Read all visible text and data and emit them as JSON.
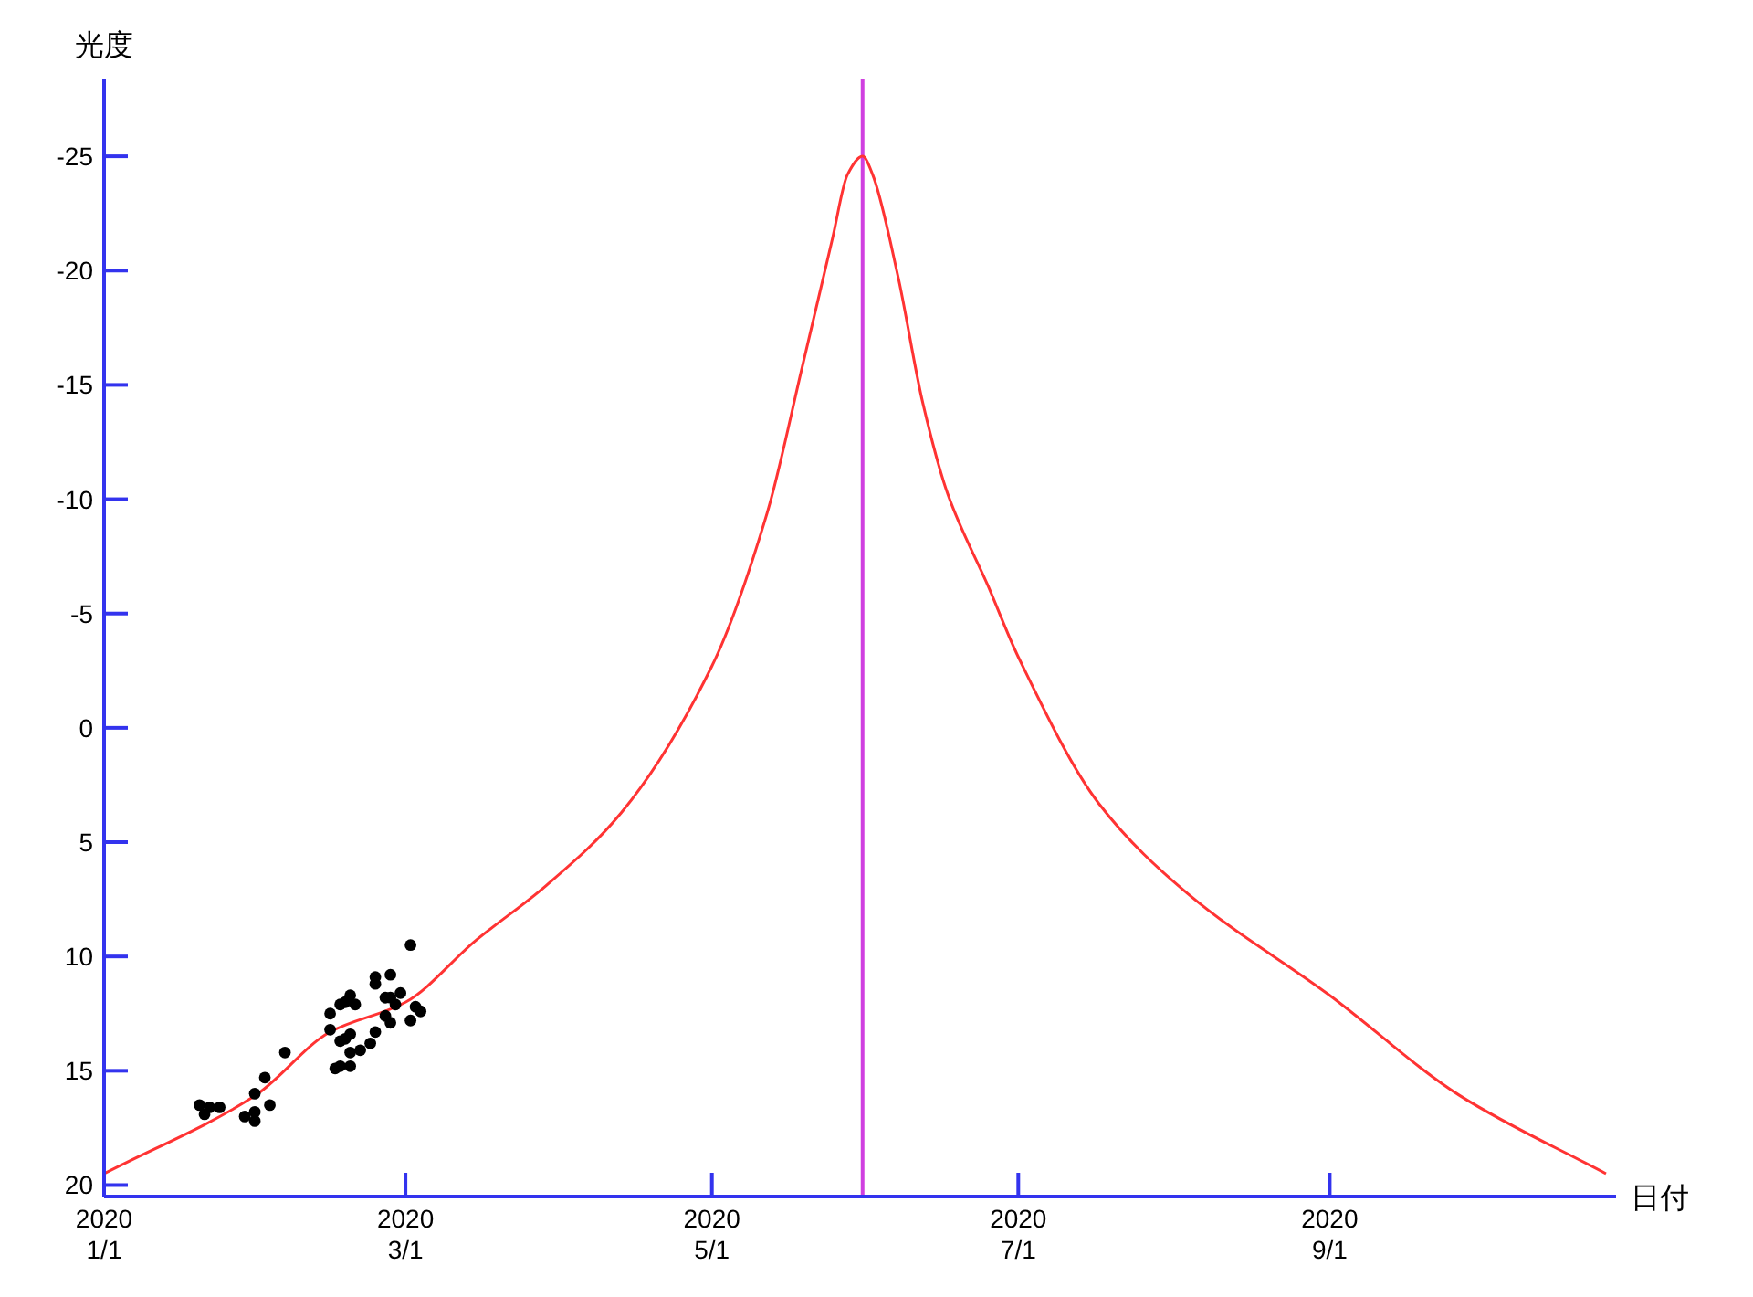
{
  "chart_data": {
    "type": "line",
    "xlabel": "日付",
    "ylabel": "光度",
    "ylim": [
      20.5,
      -28.4
    ],
    "yticks": [
      20,
      15,
      10,
      5,
      0,
      -5,
      -10,
      -15,
      -20,
      -25
    ],
    "xlim": [
      "2020-01-01",
      "2020-10-28"
    ],
    "xticks": [
      {
        "value": "2020-01-01",
        "label": "2020\n1/1"
      },
      {
        "value": "2020-03-01",
        "label": "2020\n3/1"
      },
      {
        "value": "2020-05-01",
        "label": "2020\n5/1"
      },
      {
        "value": "2020-07-01",
        "label": "2020\n7/1"
      },
      {
        "value": "2020-09-01",
        "label": "2020\n9/1"
      }
    ],
    "grid": false,
    "series": [
      {
        "color": "#ff3333",
        "line_style": "solid",
        "marker": "none",
        "x": [
          "2020-01-01",
          "2020-01-31",
          "2020-02-15",
          "2020-03-01",
          "2020-03-15",
          "2020-03-29",
          "2020-04-13",
          "2020-05-01",
          "2020-05-12",
          "2020-05-19",
          "2020-05-25",
          "2020-05-28",
          "2020-05-31",
          "2020-06-02",
          "2020-06-07",
          "2020-06-12",
          "2020-06-17",
          "2020-06-25",
          "2020-07-01",
          "2020-07-17",
          "2020-08-04",
          "2020-09-01",
          "2020-09-27",
          "2020-10-26"
        ],
        "values": [
          19.5,
          16.1,
          13.3,
          12.0,
          9.3,
          6.9,
          3.7,
          -2.7,
          -9.4,
          -15.8,
          -21.4,
          -24.2,
          -25.0,
          -24.2,
          -19.8,
          -14.2,
          -10.2,
          -6.2,
          -3.1,
          3.3,
          7.3,
          11.7,
          16.1,
          19.5
        ]
      },
      {
        "type": "scatter",
        "color": "#000000",
        "marker": "circle",
        "x": [
          "2020-01-20",
          "2020-01-21",
          "2020-01-22",
          "2020-01-24",
          "2020-01-29",
          "2020-01-31",
          "2020-01-31",
          "2020-01-31",
          "2020-02-02",
          "2020-02-03",
          "2020-02-06",
          "2020-02-15",
          "2020-02-15",
          "2020-02-16",
          "2020-02-17",
          "2020-02-17",
          "2020-02-17",
          "2020-02-18",
          "2020-02-19",
          "2020-02-19",
          "2020-02-19",
          "2020-02-20",
          "2020-02-21",
          "2020-02-23",
          "2020-02-24",
          "2020-02-24",
          "2020-02-24",
          "2020-02-26",
          "2020-02-26",
          "2020-02-27",
          "2020-02-27",
          "2020-02-27",
          "2020-02-28",
          "2020-02-29",
          "2020-03-02",
          "2020-03-02",
          "2020-03-03",
          "2020-03-04",
          "2020-02-18",
          "2020-02-19"
        ],
        "values": [
          16.5,
          16.9,
          16.6,
          16.6,
          17.0,
          16.8,
          17.2,
          16.0,
          15.3,
          16.5,
          14.2,
          12.5,
          13.2,
          14.9,
          14.8,
          13.7,
          12.1,
          12.0,
          14.8,
          14.2,
          11.7,
          12.1,
          14.1,
          13.8,
          13.3,
          11.2,
          10.9,
          11.8,
          12.6,
          10.8,
          12.9,
          11.8,
          12.1,
          11.6,
          12.8,
          9.5,
          12.2,
          12.4,
          13.6,
          13.4
        ]
      }
    ],
    "ref_lines": [
      {
        "axis": "x",
        "value": "2020-05-31",
        "color": "#d040e0"
      }
    ]
  }
}
